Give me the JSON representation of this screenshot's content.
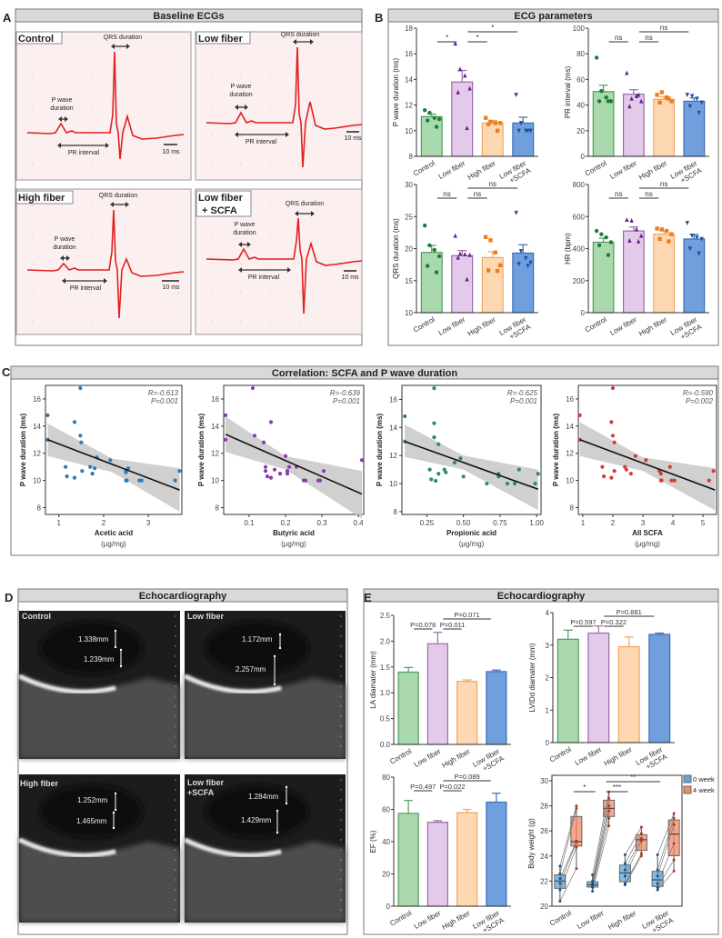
{
  "panel_letters": [
    "A",
    "B",
    "C",
    "D",
    "E"
  ],
  "colors": {
    "groups_fill": [
      "#a9d9ac",
      "#e3c9ea",
      "#fdd8b2",
      "#6f9fdc"
    ],
    "groups_stroke": [
      "#4f9d5b",
      "#9a6aa8",
      "#f2a55c",
      "#3d6db5"
    ],
    "groups_point": [
      "#1b7c3c",
      "#6b1f8c",
      "#ee7d1e",
      "#1c4f9e"
    ],
    "scatter": [
      "#2b7bb9",
      "#8b3bb0",
      "#2a8a6a",
      "#d83a3a"
    ],
    "box_0w": "#5aa7dd",
    "box_4w": "#f08a63",
    "ecg_trace": "#e02020",
    "ecg_bg": "#fcefef",
    "header_bg": "#d9d9d9"
  },
  "panel_a": {
    "title": "Baseline ECGs",
    "panels": [
      {
        "name": "Control",
        "name2": "",
        "qrs": "QRS duration",
        "p1": "P wave",
        "p2": "duration",
        "pr": "PR interval",
        "scale": "10 ms"
      },
      {
        "name": "Low fiber",
        "name2": "",
        "qrs": "QRS duration",
        "p1": "P wave",
        "p2": "duration",
        "pr": "PR interval",
        "scale": "10 ms"
      },
      {
        "name": "High fiber",
        "name2": "",
        "qrs": "QRS duration",
        "p1": "P wave",
        "p2": "duration",
        "pr": "PR interval",
        "scale": "10 ms"
      },
      {
        "name": "Low fiber",
        "name2": "+ SCFA",
        "qrs": "QRS duration",
        "p1": "P wave",
        "p2": "duration",
        "pr": "PR interval",
        "scale": "10 ms"
      }
    ]
  },
  "panel_b": {
    "title": "ECG parameters"
  },
  "panel_c": {
    "title": "Correlation: SCFA and P wave duration"
  },
  "panel_d": {
    "title": "Echocardiography",
    "images": [
      {
        "label": "Control",
        "label2": "",
        "m1": "1.338mm",
        "m2": "1.239mm"
      },
      {
        "label": "Low fiber",
        "label2": "",
        "m1": "1.172mm",
        "m2": "2.257mm"
      },
      {
        "label": "High fiber",
        "label2": "",
        "m1": "1.252mm",
        "m2": "1.465mm"
      },
      {
        "label": "Low fiber",
        "label2": "+SCFA",
        "m1": "1.284mm",
        "m2": "1.429mm"
      }
    ]
  },
  "panel_e": {
    "title": "Echocardiography"
  },
  "chart_data": [
    {
      "panel": "B",
      "type": "bar",
      "ylabel": "P wave duration (ms)",
      "ylim": [
        8,
        18
      ],
      "yticks": [
        8,
        10,
        12,
        14,
        16,
        18
      ],
      "categories": [
        "Control",
        "Low fiber",
        "High fiber",
        "Low fiber +SCFA"
      ],
      "means": [
        11.1,
        13.8,
        10.6,
        10.6
      ],
      "sem": [
        0.2,
        0.9,
        0.2,
        0.45
      ],
      "points": [
        [
          11.6,
          11.4,
          11.0,
          10.9,
          10.8,
          10.3
        ],
        [
          16.8,
          14.8,
          14.3,
          13.3,
          13.0,
          10.2
        ],
        [
          11.0,
          10.7,
          10.6,
          10.6,
          10.5,
          10.0
        ],
        [
          12.8,
          10.6,
          10.0,
          10.0,
          10.0,
          10.0
        ]
      ],
      "comparisons": [
        {
          "from": 0,
          "to": 1,
          "label": "*"
        },
        {
          "from": 1,
          "to": 2,
          "label": "*"
        },
        {
          "from": 1,
          "to": 3,
          "label": "*"
        }
      ]
    },
    {
      "panel": "B",
      "type": "bar",
      "ylabel": "PR interval (ms)",
      "ylim": [
        0,
        100
      ],
      "yticks": [
        0,
        20,
        40,
        60,
        80,
        100
      ],
      "categories": [
        "Control",
        "Low fiber",
        "High fiber",
        "Low fiber +SCFA"
      ],
      "means": [
        50.5,
        48.5,
        44.5,
        43
      ],
      "sem": [
        5,
        3.5,
        2,
        2.5
      ],
      "points": [
        [
          77,
          51,
          46,
          43,
          43,
          43
        ],
        [
          65,
          45,
          47,
          43,
          39,
          48
        ],
        [
          48,
          50,
          46,
          43,
          42,
          45
        ],
        [
          48,
          47,
          45,
          42,
          39,
          34
        ]
      ],
      "comparisons": [
        {
          "from": 0,
          "to": 1,
          "label": "ns"
        },
        {
          "from": 1,
          "to": 2,
          "label": "ns"
        },
        {
          "from": 1,
          "to": 3,
          "label": "ns"
        }
      ]
    },
    {
      "panel": "B",
      "type": "bar",
      "ylabel": "QRS duration (ms)",
      "ylim": [
        10,
        30
      ],
      "yticks": [
        10,
        15,
        20,
        25,
        30
      ],
      "categories": [
        "Control",
        "Low fiber",
        "High fiber",
        "Low fiber +SCFA"
      ],
      "means": [
        19.4,
        18.9,
        18.6,
        19.3
      ],
      "sem": [
        1.1,
        0.8,
        0.9,
        1.3
      ],
      "points": [
        [
          23.6,
          20.5,
          19.8,
          18.8,
          17.3,
          16.3
        ],
        [
          22.0,
          19.2,
          19.1,
          19.0,
          18.6,
          15.2
        ],
        [
          21.8,
          21.3,
          19.4,
          17.4,
          16.6,
          16.5
        ],
        [
          25.6,
          19.6,
          18.5,
          17.8,
          17.6,
          17.3
        ]
      ],
      "comparisons": [
        {
          "from": 0,
          "to": 1,
          "label": "ns"
        },
        {
          "from": 1,
          "to": 2,
          "label": "ns"
        },
        {
          "from": 1,
          "to": 3,
          "label": "ns"
        }
      ]
    },
    {
      "panel": "B",
      "type": "bar",
      "ylabel": "HR (bpm)",
      "ylim": [
        0,
        800
      ],
      "yticks": [
        0,
        200,
        400,
        600,
        800
      ],
      "categories": [
        "Control",
        "Low fiber",
        "High fiber",
        "Low fiber +SCFA"
      ],
      "means": [
        440,
        510,
        490,
        460
      ],
      "sem": [
        25,
        25,
        20,
        30
      ],
      "points": [
        [
          510,
          490,
          470,
          440,
          420,
          360
        ],
        [
          580,
          575,
          520,
          480,
          450,
          445
        ],
        [
          525,
          520,
          510,
          490,
          460,
          445
        ],
        [
          560,
          480,
          470,
          460,
          400,
          370
        ]
      ],
      "comparisons": [
        {
          "from": 0,
          "to": 1,
          "label": "ns"
        },
        {
          "from": 1,
          "to": 2,
          "label": "ns"
        },
        {
          "from": 1,
          "to": 3,
          "label": "ns"
        }
      ]
    },
    {
      "panel": "C",
      "type": "scatter",
      "xlabel": "Acetic acid",
      "xunit": "(μg/mg)",
      "ylabel": "P wave duration (ms)",
      "xlim": [
        0.7,
        3.75
      ],
      "ylim": [
        7.5,
        17
      ],
      "xticks": [
        "1",
        "2",
        "3"
      ],
      "yticks": [
        "8",
        "10",
        "12",
        "14",
        "16"
      ],
      "r_label": "R=-0.613",
      "p_label": "P=0.001",
      "points": [
        [
          0.75,
          14.8
        ],
        [
          0.75,
          13.0
        ],
        [
          1.15,
          11.0
        ],
        [
          1.18,
          10.3
        ],
        [
          1.35,
          14.3
        ],
        [
          1.35,
          10.2
        ],
        [
          1.48,
          16.8
        ],
        [
          1.48,
          13.3
        ],
        [
          1.5,
          12.8
        ],
        [
          1.52,
          10.7
        ],
        [
          1.7,
          11.0
        ],
        [
          1.75,
          10.5
        ],
        [
          1.8,
          10.9
        ],
        [
          1.85,
          11.7
        ],
        [
          2.15,
          11.5
        ],
        [
          2.5,
          10.6
        ],
        [
          2.5,
          10.7
        ],
        [
          2.5,
          10.0
        ],
        [
          2.52,
          10.0
        ],
        [
          2.55,
          10.9
        ],
        [
          2.8,
          10.0
        ],
        [
          2.85,
          10.0
        ],
        [
          3.6,
          10.0
        ],
        [
          3.7,
          10.7
        ]
      ],
      "fit": [
        [
          0.75,
          13.0
        ],
        [
          3.7,
          9.3
        ]
      ],
      "band": [
        [
          0.75,
          11.8,
          14.2
        ],
        [
          2.2,
          10.6,
          11.6
        ],
        [
          3.7,
          7.7,
          10.9
        ]
      ]
    },
    {
      "panel": "C",
      "type": "scatter",
      "xlabel": "Butyric acid",
      "xunit": "(μg/mg)",
      "ylabel": "P wave duration (ms)",
      "xlim": [
        0.03,
        0.415
      ],
      "ylim": [
        7.5,
        17
      ],
      "xticks": [
        "0.1",
        "0.2",
        "0.3",
        "0.4"
      ],
      "yticks": [
        "8",
        "10",
        "12",
        "14",
        "16"
      ],
      "r_label": "R=-0.639",
      "p_label": "P=0.001",
      "points": [
        [
          0.035,
          14.8
        ],
        [
          0.035,
          13.0
        ],
        [
          0.11,
          16.8
        ],
        [
          0.115,
          13.3
        ],
        [
          0.14,
          12.8
        ],
        [
          0.145,
          11.0
        ],
        [
          0.145,
          10.7
        ],
        [
          0.15,
          10.3
        ],
        [
          0.16,
          14.3
        ],
        [
          0.16,
          10.2
        ],
        [
          0.17,
          10.8
        ],
        [
          0.185,
          10.5
        ],
        [
          0.2,
          11.8
        ],
        [
          0.205,
          10.7
        ],
        [
          0.205,
          10.5
        ],
        [
          0.21,
          11.0
        ],
        [
          0.23,
          11.0
        ],
        [
          0.25,
          10.0
        ],
        [
          0.255,
          10.0
        ],
        [
          0.29,
          10.0
        ],
        [
          0.295,
          10.0
        ],
        [
          0.305,
          10.7
        ],
        [
          0.41,
          11.5
        ]
      ],
      "fit": [
        [
          0.035,
          13.4
        ],
        [
          0.41,
          9.0
        ]
      ],
      "band": [
        [
          0.035,
          12.1,
          14.7
        ],
        [
          0.2,
          10.8,
          11.8
        ],
        [
          0.41,
          7.2,
          10.7
        ]
      ]
    },
    {
      "panel": "C",
      "type": "scatter",
      "xlabel": "Propionic acid",
      "xunit": "(μg/mg)",
      "ylabel": "P wave duration (ms)",
      "xlim": [
        0.08,
        1.03
      ],
      "ylim": [
        7.8,
        17
      ],
      "xticks": [
        "0.25",
        "0.50",
        "0.75",
        "1.00"
      ],
      "yticks": [
        "8",
        "10",
        "12",
        "14",
        "16"
      ],
      "r_label": "R=-0.625",
      "p_label": "P=0.001",
      "points": [
        [
          0.1,
          14.8
        ],
        [
          0.1,
          13.0
        ],
        [
          0.27,
          11.0
        ],
        [
          0.28,
          10.3
        ],
        [
          0.3,
          16.8
        ],
        [
          0.3,
          14.3
        ],
        [
          0.3,
          13.3
        ],
        [
          0.31,
          10.2
        ],
        [
          0.33,
          12.8
        ],
        [
          0.33,
          10.7
        ],
        [
          0.37,
          11.0
        ],
        [
          0.38,
          10.8
        ],
        [
          0.44,
          11.5
        ],
        [
          0.48,
          11.8
        ],
        [
          0.5,
          10.5
        ],
        [
          0.66,
          10.0
        ],
        [
          0.74,
          10.7
        ],
        [
          0.74,
          10.5
        ],
        [
          0.8,
          10.0
        ],
        [
          0.85,
          10.0
        ],
        [
          0.88,
          11.0
        ],
        [
          0.99,
          10.0
        ],
        [
          1.01,
          10.7
        ]
      ],
      "fit": [
        [
          0.1,
          13.0
        ],
        [
          1.01,
          9.6
        ]
      ],
      "band": [
        [
          0.1,
          11.9,
          14.2
        ],
        [
          0.5,
          11.0,
          12.0
        ],
        [
          1.01,
          8.1,
          11.0
        ]
      ]
    },
    {
      "panel": "C",
      "type": "scatter",
      "xlabel": "All SCFA",
      "xunit": "(μg/mg)",
      "ylabel": "P wave duration (ms)",
      "xlim": [
        0.85,
        5.45
      ],
      "ylim": [
        7.5,
        17
      ],
      "xticks": [
        "1",
        "2",
        "3",
        "4",
        "5"
      ],
      "yticks": [
        "8",
        "10",
        "12",
        "14",
        "16"
      ],
      "r_label": "R=-0.590",
      "p_label": "P=0.002",
      "points": [
        [
          0.9,
          14.8
        ],
        [
          0.9,
          13.0
        ],
        [
          1.65,
          11.0
        ],
        [
          1.7,
          10.3
        ],
        [
          1.95,
          10.2
        ],
        [
          1.95,
          14.3
        ],
        [
          2.0,
          16.8
        ],
        [
          2.0,
          13.3
        ],
        [
          2.05,
          12.8
        ],
        [
          2.05,
          10.7
        ],
        [
          2.4,
          11.0
        ],
        [
          2.45,
          10.8
        ],
        [
          2.6,
          10.5
        ],
        [
          2.75,
          11.8
        ],
        [
          3.1,
          11.5
        ],
        [
          3.55,
          10.7
        ],
        [
          3.6,
          10.5
        ],
        [
          3.6,
          10.0
        ],
        [
          3.62,
          10.0
        ],
        [
          3.9,
          11.0
        ],
        [
          3.95,
          10.0
        ],
        [
          4.05,
          10.0
        ],
        [
          5.2,
          10.0
        ],
        [
          5.35,
          10.7
        ]
      ],
      "fit": [
        [
          0.9,
          13.0
        ],
        [
          5.4,
          9.3
        ]
      ],
      "band": [
        [
          0.9,
          11.8,
          14.3
        ],
        [
          3.0,
          10.7,
          11.7
        ],
        [
          5.4,
          7.8,
          10.9
        ]
      ]
    },
    {
      "panel": "E",
      "type": "bar",
      "ylabel": "LA diamater (mm)",
      "ylim": [
        0,
        2.5
      ],
      "yticks": [
        "0.0",
        "0.5",
        "1.0",
        "1.5",
        "2.0",
        "2.5"
      ],
      "categories": [
        "Control",
        "Low fiber",
        "High fiber",
        "Low fiber +SCFA"
      ],
      "means": [
        1.4,
        1.95,
        1.22,
        1.41
      ],
      "sem": [
        0.09,
        0.22,
        0.03,
        0.03
      ],
      "points": [],
      "comparisons": [
        {
          "from": 0,
          "to": 1,
          "label": "P=0.078"
        },
        {
          "from": 1,
          "to": 2,
          "label": "P=0.011"
        },
        {
          "from": 1,
          "to": 3,
          "label": "P=0.071"
        }
      ]
    },
    {
      "panel": "E",
      "type": "bar",
      "ylabel": "LVIDd diamater (mm)",
      "ylim": [
        0,
        4
      ],
      "yticks": [
        0,
        1,
        2,
        3,
        4
      ],
      "categories": [
        "Control",
        "Low fiber",
        "High fiber",
        "Low fiber +SCFA"
      ],
      "means": [
        3.18,
        3.37,
        2.95,
        3.33
      ],
      "sem": [
        0.28,
        0.22,
        0.3,
        0.04
      ],
      "points": [],
      "comparisons": [
        {
          "from": 0,
          "to": 1,
          "label": "P=0.597"
        },
        {
          "from": 1,
          "to": 2,
          "label": "P=0.322"
        },
        {
          "from": 1,
          "to": 3,
          "label": "P=0.881"
        }
      ]
    },
    {
      "panel": "E",
      "type": "bar",
      "ylabel": "EF (%)",
      "ylim": [
        0,
        80
      ],
      "yticks": [
        0,
        20,
        40,
        60,
        80
      ],
      "categories": [
        "Control",
        "Low fiber",
        "High fiber",
        "Low fiber +SCFA"
      ],
      "means": [
        57.5,
        52,
        58,
        64.5
      ],
      "sem": [
        8,
        1,
        2,
        5.5
      ],
      "points": [],
      "comparisons": [
        {
          "from": 0,
          "to": 1,
          "label": "P=0.497"
        },
        {
          "from": 1,
          "to": 2,
          "label": "P=0.022"
        },
        {
          "from": 1,
          "to": 3,
          "label": "P=0.089"
        }
      ]
    },
    {
      "panel": "E",
      "type": "box",
      "ylabel": "Body weight (g)",
      "ylim": [
        20,
        30
      ],
      "yticks": [
        20,
        22,
        24,
        26,
        28,
        30
      ],
      "categories": [
        "Control",
        "Low fiber",
        "High fiber",
        "Low fiber +SCFA"
      ],
      "legend": [
        "0 week",
        "4 week"
      ],
      "legend_position": "top-right",
      "week0": [
        [
          20.4,
          21.3,
          21.8,
          22.2,
          22.6,
          23.2
        ],
        [
          21.2,
          21.5,
          21.6,
          21.8,
          22.0,
          22.5
        ],
        [
          21.7,
          21.8,
          22.4,
          22.9,
          23.4,
          24.1
        ],
        [
          21.3,
          21.5,
          21.8,
          22.4,
          22.9,
          24.1
        ]
      ],
      "week4": [
        [
          23.0,
          24.7,
          25.1,
          25.2,
          27.8,
          28.0
        ],
        [
          26.4,
          27.0,
          27.6,
          28.0,
          28.6,
          29.1
        ],
        [
          24.0,
          24.2,
          25.2,
          25.4,
          25.8,
          26.3
        ],
        [
          22.8,
          23.7,
          25.0,
          26.5,
          27.0,
          27.4
        ]
      ],
      "comparisons": [
        {
          "from": 0,
          "to": 1,
          "label": "*"
        },
        {
          "from": 1,
          "to": 2,
          "label": "***"
        },
        {
          "from": 1,
          "to": 3,
          "label": "**"
        }
      ]
    }
  ]
}
